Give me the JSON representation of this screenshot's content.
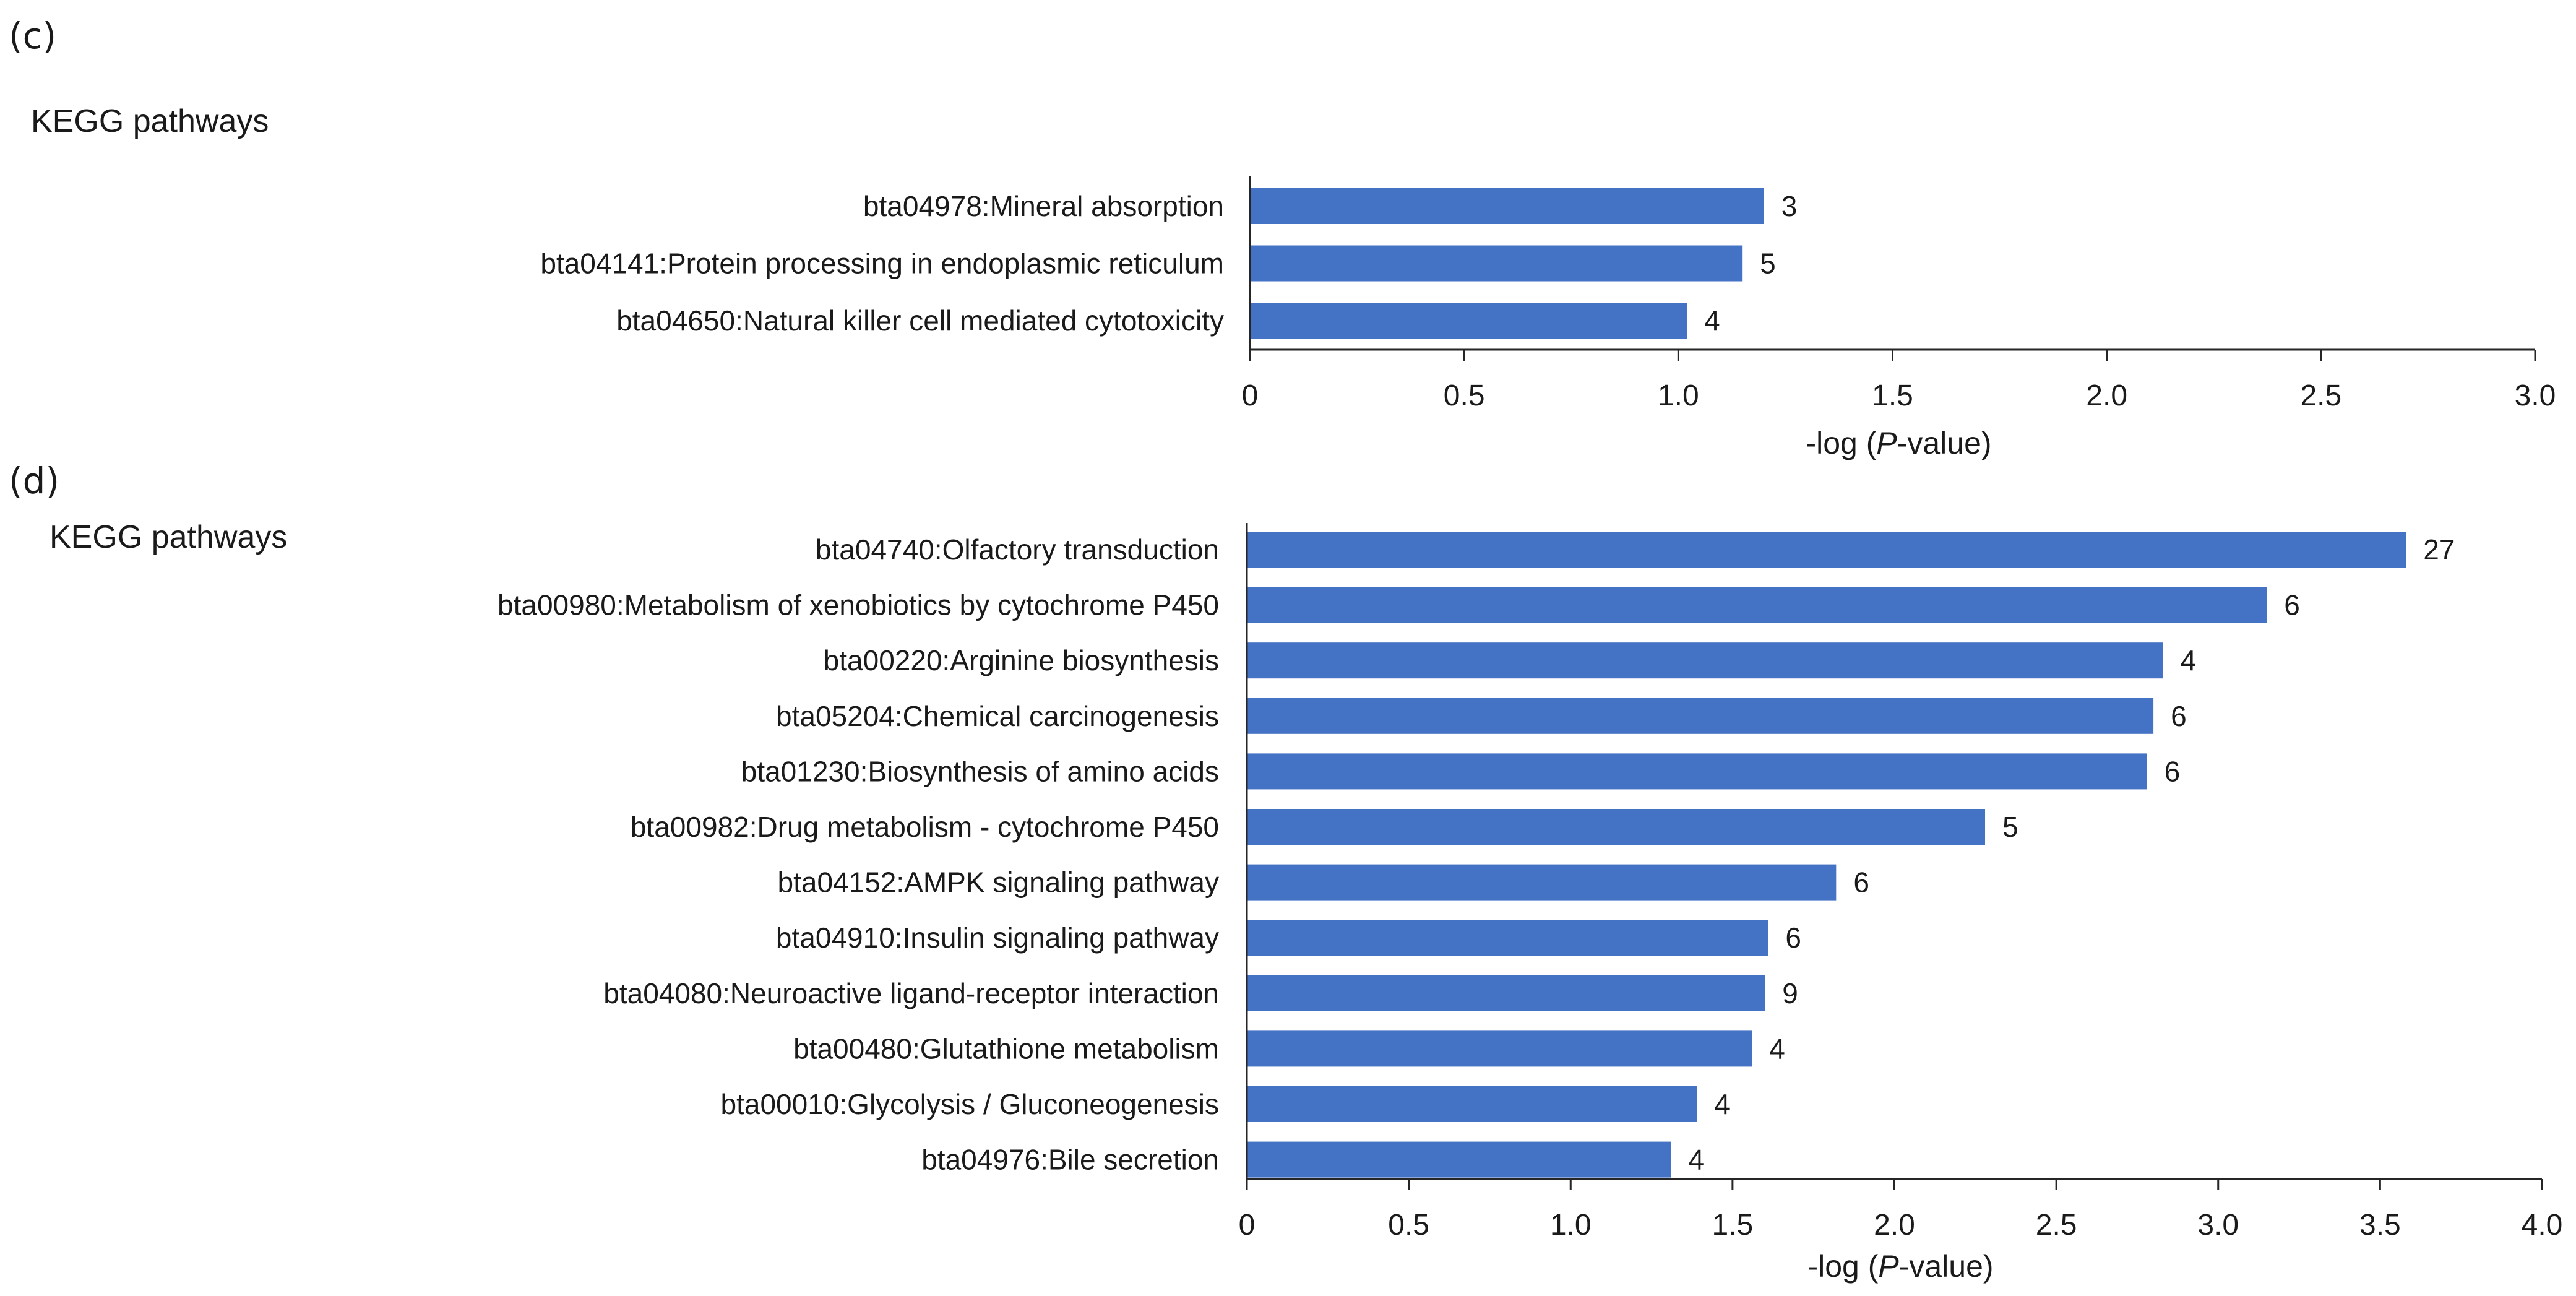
{
  "chart_data": [
    {
      "type": "bar",
      "orientation": "horizontal",
      "panel_label": "(c)",
      "title": "KEGG pathways",
      "categories": [
        "bta04978:Mineral absorption",
        "bta04141:Protein processing in endoplasmic reticulum",
        "bta04650:Natural killer cell mediated cytotoxicity"
      ],
      "values": [
        1.2,
        1.15,
        1.02
      ],
      "data_labels": [
        "3",
        "5",
        "4"
      ],
      "xlim": [
        0,
        3.0
      ],
      "ticks": [
        "0",
        "0.5",
        "1.0",
        "1.5",
        "2.0",
        "2.5",
        "3.0"
      ],
      "xlabel": {
        "prefix": "-log (",
        "italic": "P",
        "suffix": "-value)"
      },
      "ylabel": "",
      "grid": false,
      "bar_color": "#4472C4"
    },
    {
      "type": "bar",
      "orientation": "horizontal",
      "panel_label": "(d)",
      "title": "KEGG pathways",
      "categories": [
        "bta04740:Olfactory transduction",
        "bta00980:Metabolism of xenobiotics by cytochrome P450",
        "bta00220:Arginine biosynthesis",
        "bta05204:Chemical carcinogenesis",
        "bta01230:Biosynthesis of amino acids",
        "bta00982:Drug metabolism - cytochrome P450",
        "bta04152:AMPK signaling pathway",
        "bta04910:Insulin signaling pathway",
        "bta04080:Neuroactive ligand-receptor interaction",
        "bta00480:Glutathione metabolism",
        "bta00010:Glycolysis / Gluconeogenesis",
        "bta04976:Bile secretion"
      ],
      "values": [
        3.58,
        3.15,
        2.83,
        2.8,
        2.78,
        2.28,
        1.82,
        1.61,
        1.6,
        1.56,
        1.39,
        1.31
      ],
      "data_labels": [
        "27",
        "6",
        "4",
        "6",
        "6",
        "5",
        "6",
        "6",
        "9",
        "4",
        "4",
        "4"
      ],
      "xlim": [
        0,
        4.0
      ],
      "ticks": [
        "0",
        "0.5",
        "1.0",
        "1.5",
        "2.0",
        "2.5",
        "3.0",
        "3.5",
        "4.0"
      ],
      "xlabel": {
        "prefix": "-log (",
        "italic": "P",
        "suffix": "-value)"
      },
      "ylabel": "",
      "grid": false,
      "bar_color": "#4472C4"
    }
  ]
}
